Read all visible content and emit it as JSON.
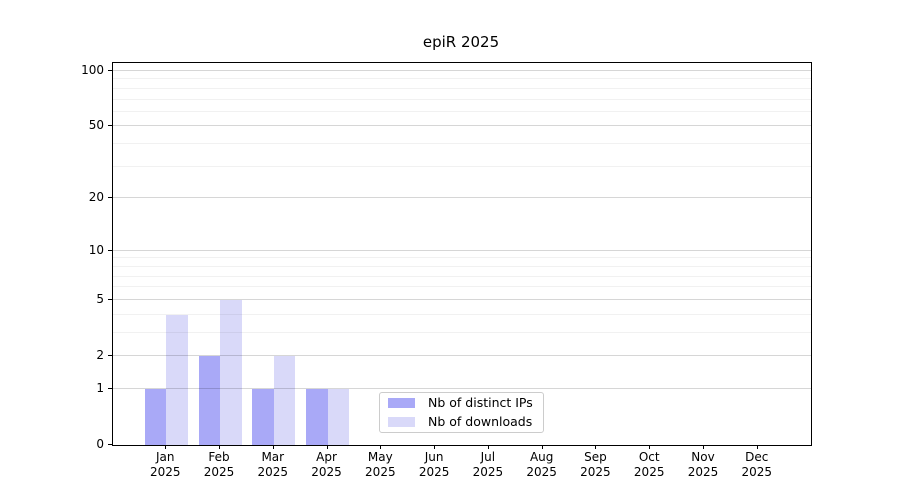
{
  "figure": {
    "title": "epiR 2025",
    "background": "#ffffff"
  },
  "chart_data": {
    "type": "bar",
    "title": "epiR 2025",
    "categories": [
      "Jan",
      "Feb",
      "Mar",
      "Apr",
      "May",
      "Jun",
      "Jul",
      "Aug",
      "Sep",
      "Oct",
      "Nov",
      "Dec"
    ],
    "x_tick_year": "2025",
    "series": [
      {
        "name": "Nb of distinct IPs",
        "color": "#a9a9f7",
        "values": [
          1,
          2,
          1,
          1,
          0,
          0,
          0,
          0,
          0,
          0,
          0,
          0
        ]
      },
      {
        "name": "Nb of downloads",
        "color": "#d9d9f9",
        "values": [
          4,
          5,
          2,
          1,
          0,
          0,
          0,
          0,
          0,
          0,
          0,
          0
        ]
      }
    ],
    "yscale": "log1p",
    "ylim": [
      0,
      110
    ],
    "xlabel": "",
    "ylabel": "",
    "y_major_ticks": [
      0,
      1,
      2,
      5,
      10,
      20,
      50,
      100
    ],
    "y_minor_gridlines": [
      3,
      4,
      6,
      7,
      8,
      9,
      30,
      40,
      60,
      70,
      80,
      90
    ],
    "grid": true,
    "legend_position": "inside-lower-center"
  },
  "colors": {
    "axis": "#000000",
    "bar_ips": "#a9a9f7",
    "bar_downloads": "#d9d9f9",
    "legend_border": "#cccccc",
    "grid_major": "#d6d6d6",
    "grid_minor": "#f0f0f0"
  }
}
